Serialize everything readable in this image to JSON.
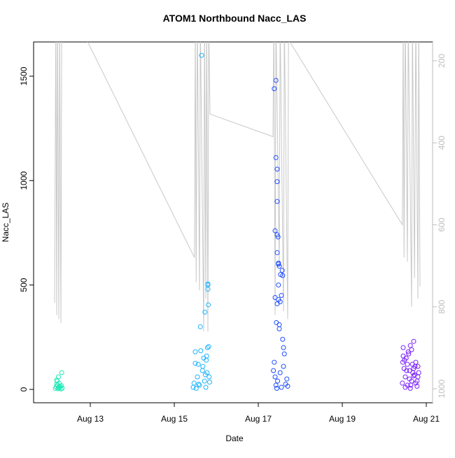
{
  "chart_data": {
    "type": "scatter",
    "title": "ATOM1 Northbound Nacc_LAS",
    "x_label": "Date",
    "y_label": "Nacc_LAS",
    "xlim": [
      11.65,
      21.15
    ],
    "xticks": [
      {
        "value": 13,
        "label": "Aug 13"
      },
      {
        "value": 15,
        "label": "Aug 15"
      },
      {
        "value": 17,
        "label": "Aug 17"
      },
      {
        "value": 19,
        "label": "Aug 19"
      },
      {
        "value": 21,
        "label": "Aug 21"
      }
    ],
    "ylim": [
      -64,
      1664
    ],
    "yticks": [
      0,
      500,
      1000,
      1500
    ],
    "y2lim": [
      1034,
      154
    ],
    "y2ticks": [
      200,
      400,
      600,
      800,
      1000
    ],
    "y2_color": "#bebebe",
    "series": [
      {
        "type": "line",
        "axis": "y2",
        "color": "#c8c8c8",
        "x": [
          12.15,
          12.18,
          12.2,
          12.22,
          12.25,
          12.27,
          12.3,
          12.32,
          12.35,
          12.92,
          15.48,
          15.5,
          15.52,
          15.55,
          15.6,
          15.62,
          15.7,
          15.72,
          15.75,
          15.77,
          15.8,
          15.82,
          15.85,
          17.35,
          17.37,
          17.4,
          17.42,
          17.5,
          17.52,
          17.6,
          17.62,
          17.7,
          17.72,
          17.73,
          20.43,
          20.45,
          20.47,
          20.5,
          20.55,
          20.57,
          20.65,
          20.67,
          20.72,
          20.75,
          20.8,
          20.82,
          20.85
        ],
        "values": [
          790,
          100,
          820,
          100,
          830,
          100,
          840,
          100,
          100,
          150,
          680,
          100,
          740,
          100,
          760,
          100,
          860,
          100,
          780,
          100,
          860,
          100,
          330,
          385,
          100,
          820,
          100,
          700,
          100,
          810,
          100,
          830,
          100,
          150,
          600,
          100,
          680,
          100,
          690,
          100,
          800,
          100,
          730,
          100,
          780,
          100,
          750
        ]
      },
      {
        "color": "#1de9b6",
        "x": [
          12.17,
          12.19,
          12.2,
          12.22,
          12.23,
          12.25,
          12.26,
          12.28,
          12.3,
          12.32,
          12.2,
          12.24,
          12.27,
          12.31,
          12.33,
          12.21
        ],
        "values": [
          5,
          12,
          45,
          20,
          3,
          8,
          30,
          15,
          2,
          80,
          25,
          60,
          10,
          18,
          6,
          40
        ]
      },
      {
        "color": "#1eb4ff",
        "x": [
          15.45,
          15.47,
          15.5,
          15.52,
          15.55,
          15.57,
          15.6,
          15.62,
          15.65,
          15.67,
          15.7,
          15.72,
          15.73,
          15.75,
          15.77,
          15.78,
          15.8,
          15.8,
          15.8,
          15.81,
          15.82,
          15.79,
          15.83,
          15.5,
          15.58,
          15.63,
          15.68,
          15.74,
          15.76,
          15.84
        ],
        "values": [
          10,
          30,
          180,
          5,
          60,
          120,
          20,
          300,
          1600,
          90,
          150,
          40,
          370,
          10,
          160,
          80,
          505,
          500,
          480,
          405,
          205,
          200,
          60,
          125,
          25,
          185,
          110,
          70,
          140,
          35
        ]
      },
      {
        "color": "#1f4dff",
        "x": [
          17.42,
          17.38,
          17.42,
          17.45,
          17.45,
          17.45,
          17.4,
          17.45,
          17.47,
          17.45,
          17.48,
          17.48,
          17.5,
          17.57,
          17.53,
          17.58,
          17.48,
          17.55,
          17.4,
          17.48,
          17.52,
          17.45,
          17.43,
          17.5,
          17.5,
          17.58,
          17.6,
          17.62,
          17.38,
          17.4,
          17.42,
          17.44,
          17.46,
          17.52,
          17.55,
          17.6,
          17.65,
          17.68,
          17.7,
          17.36
        ],
        "values": [
          1480,
          1440,
          1110,
          1055,
          995,
          900,
          760,
          740,
          730,
          655,
          605,
          600,
          590,
          570,
          550,
          545,
          500,
          450,
          440,
          430,
          420,
          410,
          320,
          310,
          290,
          240,
          200,
          170,
          130,
          60,
          20,
          5,
          40,
          80,
          10,
          110,
          25,
          50,
          15,
          90
        ]
      },
      {
        "color": "#7a1fff",
        "x": [
          20.43,
          20.45,
          20.47,
          20.5,
          20.52,
          20.55,
          20.57,
          20.6,
          20.62,
          20.65,
          20.67,
          20.7,
          20.72,
          20.75,
          20.78,
          20.8,
          20.82,
          20.45,
          20.5,
          20.55,
          20.6,
          20.65,
          20.7,
          20.75,
          20.8,
          20.48,
          20.53,
          20.58,
          20.63,
          20.68,
          20.73,
          20.78,
          20.44,
          20.62,
          20.7
        ],
        "values": [
          30,
          200,
          100,
          60,
          150,
          20,
          180,
          90,
          210,
          40,
          120,
          230,
          70,
          130,
          15,
          110,
          80,
          160,
          10,
          120,
          50,
          190,
          100,
          30,
          60,
          140,
          90,
          170,
          20,
          80,
          110,
          40,
          130,
          5,
          65
        ]
      }
    ]
  }
}
